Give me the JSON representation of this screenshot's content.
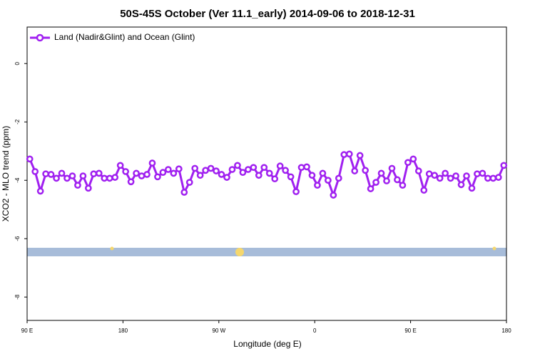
{
  "chart_data": {
    "type": "line",
    "title": "50S-45S October (Ver 11.1_early)   2014-09-06 to 2018-12-31",
    "x_label": "Longitude (deg E)",
    "y_label": "XCO2 - MLO trend (ppm)",
    "legend_position": "top-left",
    "xlim": [
      90,
      540
    ],
    "xticks": [
      {
        "value": 90,
        "label": "90 E"
      },
      {
        "value": 180,
        "label": "180"
      },
      {
        "value": 270,
        "label": "90 W"
      },
      {
        "value": 360,
        "label": "0"
      },
      {
        "value": 450,
        "label": "90 E"
      },
      {
        "value": 540,
        "label": "180"
      }
    ],
    "ylim": [
      -8.8,
      1.25
    ],
    "yticks": [
      0,
      -2,
      -4,
      -6,
      -8
    ],
    "x": [
      92.5,
      97.5,
      102.5,
      107.5,
      112.5,
      117.5,
      122.5,
      127.5,
      132.5,
      137.5,
      142.5,
      147.5,
      152.5,
      157.5,
      162.5,
      167.5,
      172.5,
      177.5,
      182.5,
      187.5,
      192.5,
      197.5,
      202.5,
      207.5,
      212.5,
      217.5,
      222.5,
      227.5,
      232.5,
      237.5,
      242.5,
      247.5,
      252.5,
      257.5,
      262.5,
      267.5,
      272.5,
      277.5,
      282.5,
      287.5,
      292.5,
      297.5,
      302.5,
      307.5,
      312.5,
      317.5,
      322.5,
      327.5,
      332.5,
      337.5,
      342.5,
      347.5,
      352.5,
      357.5,
      362.5,
      367.5,
      372.5,
      377.5,
      382.5,
      387.5,
      392.5,
      397.5,
      402.5,
      407.5,
      412.5,
      417.5,
      422.5,
      427.5,
      432.5,
      437.5,
      442.5,
      447.5,
      452.5,
      457.5,
      462.5,
      467.5,
      472.5,
      477.5,
      482.5,
      487.5,
      492.5,
      497.5,
      502.5,
      507.5,
      512.5,
      517.5,
      522.5,
      527.5,
      532.5,
      537.5
    ],
    "series": [
      {
        "name": "Land (Nadir&Glint) and Ocean (Glint)",
        "color": "#a020f0",
        "values": [
          -3.27,
          -3.7,
          -4.37,
          -3.78,
          -3.8,
          -3.93,
          -3.76,
          -3.93,
          -3.85,
          -4.17,
          -3.85,
          -4.27,
          -3.78,
          -3.76,
          -3.93,
          -3.93,
          -3.9,
          -3.49,
          -3.7,
          -4.05,
          -3.76,
          -3.85,
          -3.8,
          -3.41,
          -3.88,
          -3.73,
          -3.63,
          -3.76,
          -3.61,
          -4.41,
          -4.07,
          -3.59,
          -3.83,
          -3.66,
          -3.59,
          -3.68,
          -3.8,
          -3.9,
          -3.63,
          -3.49,
          -3.73,
          -3.63,
          -3.56,
          -3.83,
          -3.56,
          -3.76,
          -3.95,
          -3.51,
          -3.66,
          -3.88,
          -4.39,
          -3.56,
          -3.54,
          -3.83,
          -4.17,
          -3.76,
          -4.0,
          -4.51,
          -3.93,
          -3.12,
          -3.1,
          -3.68,
          -3.15,
          -3.66,
          -4.29,
          -4.07,
          -3.76,
          -4.02,
          -3.59,
          -3.98,
          -4.17,
          -3.39,
          -3.27,
          -3.68,
          -4.34,
          -3.78,
          -3.83,
          -3.93,
          -3.76,
          -3.93,
          -3.85,
          -4.15,
          -3.85,
          -4.27,
          -3.78,
          -3.76,
          -3.93,
          -3.93,
          -3.9,
          -3.49
        ]
      }
    ]
  }
}
